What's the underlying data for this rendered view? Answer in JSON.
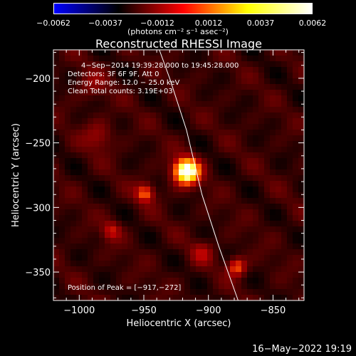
{
  "colorbar": {
    "ticks": [
      "−0.0062",
      "−0.0037",
      "−0.0012",
      "0.0012",
      "0.0037",
      "0.0062"
    ],
    "unit": "(photons cm⁻² s⁻¹ asec⁻²)",
    "colors": [
      "#0000ff",
      "#000000",
      "#ff0000",
      "#ffff00",
      "#ffffff"
    ]
  },
  "chart_data": {
    "type": "heatmap",
    "title": "Reconstructed RHESSI Image",
    "xlabel": "Heliocentric X (arcsec)",
    "ylabel": "Heliocentric Y (arcsec)",
    "xlim": [
      -1020,
      -826
    ],
    "ylim": [
      -372,
      -178
    ],
    "xticks": [
      -1000,
      -950,
      -900,
      -850
    ],
    "yticks": [
      -200,
      -250,
      -300,
      -350
    ],
    "xtick_labels": [
      "−1000",
      "−950",
      "−900",
      "−850"
    ],
    "ytick_labels": [
      "−200",
      "−250",
      "−300",
      "−350"
    ],
    "annotations": [
      "4−Sep−2014 19:39:28.000 to 19:45:28.000",
      "Detectors: 3F 6F 9F, Att 0",
      "Energy Range: 12.0 − 25.0 keV",
      "Clean    Total counts: 3.19E+03"
    ],
    "peak_label": "Position of Peak = [−917,−272]",
    "peak": [
      -917,
      -272
    ],
    "sources": [
      {
        "x": -917,
        "y": -272,
        "peak": 1.0,
        "sigma": 7
      },
      {
        "x": -949,
        "y": -289,
        "peak": 0.45,
        "sigma": 5
      },
      {
        "x": -878,
        "y": -346,
        "peak": 0.45,
        "sigma": 5
      },
      {
        "x": -975,
        "y": -318,
        "peak": 0.3,
        "sigma": 5
      },
      {
        "x": -905,
        "y": -335,
        "peak": 0.22,
        "sigma": 6
      },
      {
        "x": -985,
        "y": -245,
        "peak": 0.2,
        "sigma": 8
      },
      {
        "x": -990,
        "y": -205,
        "peak": 0.15,
        "sigma": 8
      }
    ],
    "limb": [
      [
        -938,
        -178
      ],
      [
        -930,
        -200
      ],
      [
        -917,
        -240
      ],
      [
        -905,
        -290
      ],
      [
        -892,
        -330
      ],
      [
        -877,
        -372
      ]
    ]
  },
  "footer": "16−May−2022 19:19"
}
